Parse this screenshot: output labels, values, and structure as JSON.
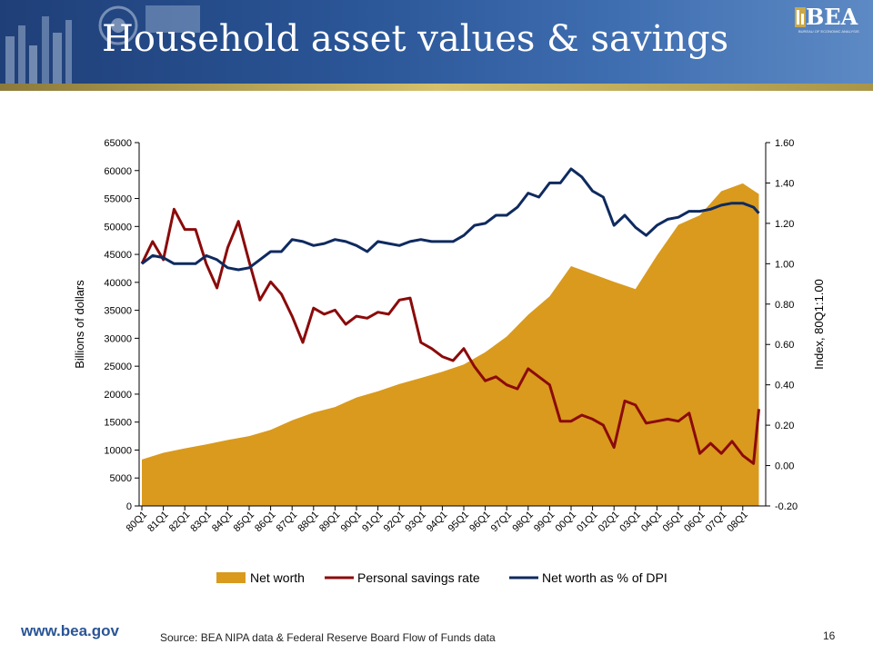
{
  "slide": {
    "title": "Household asset values & savings",
    "logo_text": "BEA",
    "logo_sub": "BUREAU OF ECONOMIC ANALYSIS",
    "url": "www.bea.gov",
    "source": "Source: BEA NIPA data & Federal Reserve Board Flow of Funds data",
    "page_number": "16"
  },
  "colors": {
    "banner": "#2a5596",
    "net_worth": "#d99a1e",
    "savings": "#8b0a0a",
    "dpi": "#0f2a5f"
  },
  "chart_data": {
    "type": "area",
    "title": "",
    "ylabel": "Billions of dollars",
    "y2label": "Index, 80Q1:1.00",
    "ylim": [
      0,
      65000
    ],
    "y2lim": [
      -0.2,
      1.6
    ],
    "yticks": [
      "0",
      "5000",
      "10000",
      "15000",
      "20000",
      "25000",
      "30000",
      "35000",
      "40000",
      "45000",
      "50000",
      "55000",
      "60000",
      "65000"
    ],
    "y2ticks": [
      "-0.20",
      "0.00",
      "0.20",
      "0.40",
      "0.60",
      "0.80",
      "1.00",
      "1.20",
      "1.40",
      "1.60"
    ],
    "categories": [
      "80Q1",
      "81Q1",
      "82Q1",
      "83Q1",
      "84Q1",
      "85Q1",
      "86Q1",
      "87Q1",
      "88Q1",
      "89Q1",
      "90Q1",
      "91Q1",
      "92Q1",
      "93Q1",
      "94Q1",
      "95Q1",
      "96Q1",
      "97Q1",
      "98Q1",
      "99Q1",
      "00Q1",
      "01Q1",
      "02Q1",
      "03Q1",
      "04Q1",
      "05Q1",
      "06Q1",
      "07Q1",
      "08Q1"
    ],
    "legend": [
      "Net worth",
      "Personal savings rate",
      "Net worth as % of DPI"
    ],
    "legend_position": "bottom",
    "grid": false,
    "series": [
      {
        "name": "Net worth",
        "type": "area",
        "axis": "left",
        "color": "#d99a1e",
        "x": [
          0,
          1,
          2,
          3,
          4,
          5,
          6,
          7,
          8,
          9,
          10,
          11,
          12,
          13,
          14,
          15,
          16,
          17,
          18,
          19,
          20,
          21,
          22,
          23,
          24,
          25,
          26,
          27,
          28,
          28.75
        ],
        "values": [
          8300,
          9500,
          10300,
          11000,
          11800,
          12500,
          13600,
          15300,
          16700,
          17700,
          19400,
          20500,
          21800,
          22900,
          24000,
          25300,
          27500,
          30300,
          34200,
          37500,
          42900,
          41500,
          40100,
          38800,
          44800,
          50300,
          52000,
          56300,
          57700,
          55800
        ]
      },
      {
        "name": "Personal savings rate",
        "type": "line",
        "axis": "right",
        "color": "#8b0a0a",
        "x": [
          0,
          0.5,
          1,
          1.5,
          2,
          2.5,
          3,
          3.5,
          4,
          4.5,
          5,
          5.5,
          6,
          6.5,
          7,
          7.5,
          8,
          8.5,
          9,
          9.5,
          10,
          10.5,
          11,
          11.5,
          12,
          12.5,
          13,
          13.5,
          14,
          14.5,
          15,
          15.5,
          16,
          16.5,
          17,
          17.5,
          18,
          18.5,
          19,
          19.5,
          20,
          20.5,
          21,
          21.5,
          22,
          22.5,
          23,
          23.5,
          24,
          24.5,
          25,
          25.5,
          26,
          26.5,
          27,
          27.5,
          28,
          28.5,
          28.75
        ],
        "values": [
          1.0,
          1.11,
          1.02,
          1.27,
          1.17,
          1.17,
          1.0,
          0.88,
          1.08,
          1.21,
          1.01,
          0.82,
          0.91,
          0.85,
          0.74,
          0.61,
          0.78,
          0.75,
          0.77,
          0.7,
          0.74,
          0.73,
          0.76,
          0.75,
          0.82,
          0.83,
          0.61,
          0.58,
          0.54,
          0.52,
          0.58,
          0.49,
          0.42,
          0.44,
          0.4,
          0.38,
          0.48,
          0.44,
          0.4,
          0.22,
          0.22,
          0.25,
          0.23,
          0.2,
          0.09,
          0.32,
          0.3,
          0.21,
          0.22,
          0.23,
          0.22,
          0.26,
          0.06,
          0.11,
          0.06,
          0.12,
          0.05,
          0.01,
          0.28
        ]
      },
      {
        "name": "Net worth as % of DPI",
        "type": "line",
        "axis": "right",
        "color": "#0f2a5f",
        "x": [
          0,
          0.5,
          1,
          1.5,
          2,
          2.5,
          3,
          3.5,
          4,
          4.5,
          5,
          5.5,
          6,
          6.5,
          7,
          7.5,
          8,
          8.5,
          9,
          9.5,
          10,
          10.5,
          11,
          11.5,
          12,
          12.5,
          13,
          13.5,
          14,
          14.5,
          15,
          15.5,
          16,
          16.5,
          17,
          17.5,
          18,
          18.5,
          19,
          19.5,
          20,
          20.5,
          21,
          21.5,
          22,
          22.5,
          23,
          23.5,
          24,
          24.5,
          25,
          25.5,
          26,
          26.5,
          27,
          27.5,
          28,
          28.5,
          28.75
        ],
        "values": [
          1.0,
          1.04,
          1.03,
          1.0,
          1.0,
          1.0,
          1.04,
          1.02,
          0.98,
          0.97,
          0.98,
          1.02,
          1.06,
          1.06,
          1.12,
          1.11,
          1.09,
          1.1,
          1.12,
          1.11,
          1.09,
          1.06,
          1.11,
          1.1,
          1.09,
          1.11,
          1.12,
          1.11,
          1.11,
          1.11,
          1.14,
          1.19,
          1.2,
          1.24,
          1.24,
          1.28,
          1.35,
          1.33,
          1.4,
          1.4,
          1.47,
          1.43,
          1.36,
          1.33,
          1.19,
          1.24,
          1.18,
          1.14,
          1.19,
          1.22,
          1.23,
          1.26,
          1.26,
          1.27,
          1.29,
          1.3,
          1.3,
          1.28,
          1.25
        ]
      }
    ]
  }
}
